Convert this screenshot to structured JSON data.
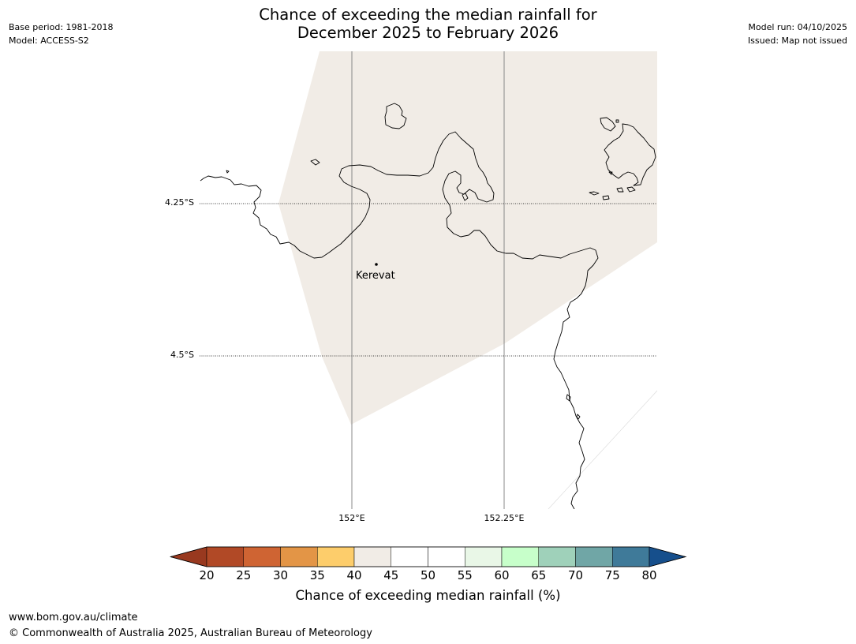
{
  "header": {
    "title_line1": "Chance of exceeding the median rainfall for",
    "title_line2": "December 2025 to February 2026",
    "base_period": "Base period: 1981-2018",
    "model": "Model: ACCESS-S2",
    "model_run": "Model run: 04/10/2025",
    "issued": "Issued: Map not issued"
  },
  "map": {
    "latitude_labels": [
      "4.25°S",
      "4.5°S"
    ],
    "longitude_labels": [
      "152°E",
      "152.25°E"
    ],
    "towns": [
      {
        "name": "Kerevat"
      }
    ],
    "land_fill_color": "#f1ece6",
    "coast_color": "#000000",
    "graticule_color": "#808080"
  },
  "colorbar": {
    "title": "Chance of exceeding median rainfall (%)",
    "ticks": [
      "20",
      "25",
      "30",
      "35",
      "40",
      "45",
      "50",
      "55",
      "60",
      "65",
      "70",
      "75",
      "80"
    ],
    "under_color": "#99391f",
    "over_color": "#164f8c",
    "bin_colors": [
      "#b14926",
      "#cf6433",
      "#e39546",
      "#fdcd6b",
      "#f1ece6",
      "#ffffff",
      "#ffffff",
      "#e9f7e7",
      "#c7ffca",
      "#9fd1ba",
      "#70a6a6",
      "#3f7a99"
    ]
  },
  "footer": {
    "url": "www.bom.gov.au/climate",
    "copyright": "© Commonwealth of Australia 2025, Australian Bureau of Meteorology"
  }
}
